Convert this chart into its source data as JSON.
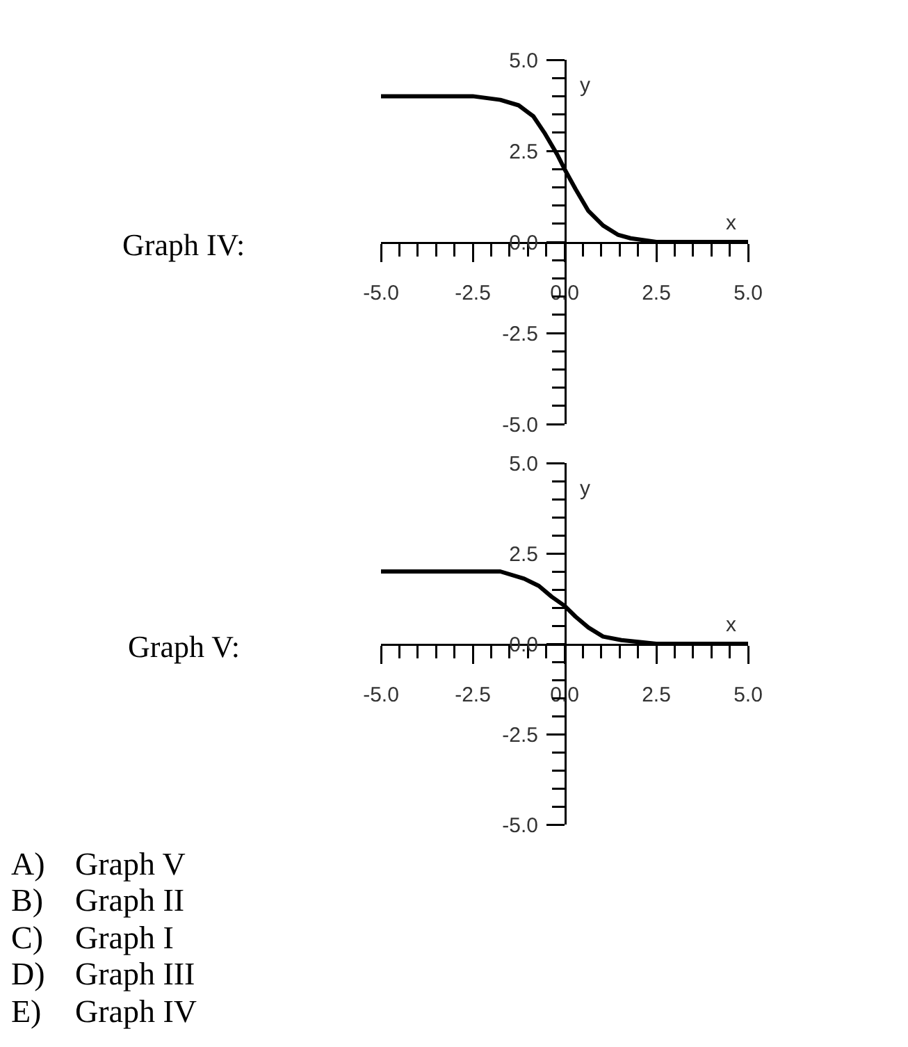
{
  "chart_data": [
    {
      "type": "line",
      "title": "Graph IV:",
      "xlabel": "x",
      "ylabel": "y",
      "color": "#000000",
      "marker": "none",
      "line_style": "solid",
      "x": [
        -5,
        -4,
        -3,
        -2.5,
        -1.75,
        -1.25,
        -0.85,
        -0.55,
        -0.2,
        0,
        0.3,
        0.65,
        1.05,
        1.45,
        1.8,
        2.5,
        3,
        4,
        5
      ],
      "values": [
        4,
        4,
        4,
        4,
        3.9,
        3.75,
        3.45,
        3,
        2.4,
        2,
        1.45,
        0.85,
        0.45,
        0.2,
        0.1,
        0,
        0,
        0,
        0
      ],
      "xlim": [
        -5,
        5
      ],
      "ylim": [
        -5,
        5
      ],
      "xticks": [
        {
          "value": -5,
          "label": "-5.0"
        },
        {
          "value": -4.5,
          "label": null
        },
        {
          "value": -4,
          "label": null
        },
        {
          "value": -3.5,
          "label": null
        },
        {
          "value": -3,
          "label": null
        },
        {
          "value": -2.5,
          "label": "-2.5"
        },
        {
          "value": -2,
          "label": null
        },
        {
          "value": -1.5,
          "label": null
        },
        {
          "value": -1,
          "label": null
        },
        {
          "value": -0.5,
          "label": null
        },
        {
          "value": 0,
          "label": "0.0"
        },
        {
          "value": 0.5,
          "label": null
        },
        {
          "value": 1,
          "label": null
        },
        {
          "value": 1.5,
          "label": null
        },
        {
          "value": 2,
          "label": null
        },
        {
          "value": 2.5,
          "label": "2.5"
        },
        {
          "value": 3,
          "label": null
        },
        {
          "value": 3.5,
          "label": null
        },
        {
          "value": 4,
          "label": null
        },
        {
          "value": 4.5,
          "label": null
        },
        {
          "value": 5,
          "label": "5.0"
        }
      ],
      "yticks": [
        {
          "value": -5,
          "label": "-5.0"
        },
        {
          "value": -4.5,
          "label": null
        },
        {
          "value": -4,
          "label": null
        },
        {
          "value": -3.5,
          "label": null
        },
        {
          "value": -3,
          "label": null
        },
        {
          "value": -2.5,
          "label": "-2.5"
        },
        {
          "value": -2,
          "label": null
        },
        {
          "value": -1.5,
          "label": null
        },
        {
          "value": -1,
          "label": null
        },
        {
          "value": -0.5,
          "label": null
        },
        {
          "value": 0,
          "label": "0.0"
        },
        {
          "value": 0.5,
          "label": null
        },
        {
          "value": 1,
          "label": null
        },
        {
          "value": 1.5,
          "label": null
        },
        {
          "value": 2,
          "label": null
        },
        {
          "value": 2.5,
          "label": "2.5"
        },
        {
          "value": 3,
          "label": null
        },
        {
          "value": 3.5,
          "label": null
        },
        {
          "value": 4,
          "label": null
        },
        {
          "value": 4.5,
          "label": null
        },
        {
          "value": 5,
          "label": "5.0"
        }
      ]
    },
    {
      "type": "line",
      "title": "Graph V:",
      "xlabel": "x",
      "ylabel": "y",
      "color": "#000000",
      "marker": "none",
      "line_style": "solid",
      "x": [
        -5,
        -4,
        -3,
        -2.3,
        -1.75,
        -1.1,
        -0.7,
        -0.35,
        0,
        0.3,
        0.65,
        1.05,
        1.55,
        2.05,
        2.5,
        3,
        4,
        5
      ],
      "values": [
        2,
        2,
        2,
        2,
        2,
        1.8,
        1.6,
        1.3,
        1.05,
        0.75,
        0.45,
        0.2,
        0.1,
        0.05,
        0,
        0,
        0,
        0
      ],
      "xlim": [
        -5,
        5
      ],
      "ylim": [
        -5,
        5
      ],
      "xticks": [
        {
          "value": -5,
          "label": "-5.0"
        },
        {
          "value": -4.5,
          "label": null
        },
        {
          "value": -4,
          "label": null
        },
        {
          "value": -3.5,
          "label": null
        },
        {
          "value": -3,
          "label": null
        },
        {
          "value": -2.5,
          "label": "-2.5"
        },
        {
          "value": -2,
          "label": null
        },
        {
          "value": -1.5,
          "label": null
        },
        {
          "value": -1,
          "label": null
        },
        {
          "value": -0.5,
          "label": null
        },
        {
          "value": 0,
          "label": "0.0"
        },
        {
          "value": 0.5,
          "label": null
        },
        {
          "value": 1,
          "label": null
        },
        {
          "value": 1.5,
          "label": null
        },
        {
          "value": 2,
          "label": null
        },
        {
          "value": 2.5,
          "label": "2.5"
        },
        {
          "value": 3,
          "label": null
        },
        {
          "value": 3.5,
          "label": null
        },
        {
          "value": 4,
          "label": null
        },
        {
          "value": 4.5,
          "label": null
        },
        {
          "value": 5,
          "label": "5.0"
        }
      ],
      "yticks": [
        {
          "value": -5,
          "label": "-5.0"
        },
        {
          "value": -4.5,
          "label": null
        },
        {
          "value": -4,
          "label": null
        },
        {
          "value": -3.5,
          "label": null
        },
        {
          "value": -3,
          "label": null
        },
        {
          "value": -2.5,
          "label": "-2.5"
        },
        {
          "value": -2,
          "label": null
        },
        {
          "value": -1.5,
          "label": null
        },
        {
          "value": -1,
          "label": null
        },
        {
          "value": -0.5,
          "label": null
        },
        {
          "value": 0,
          "label": "0.0"
        },
        {
          "value": 0.5,
          "label": null
        },
        {
          "value": 1,
          "label": null
        },
        {
          "value": 1.5,
          "label": null
        },
        {
          "value": 2,
          "label": null
        },
        {
          "value": 2.5,
          "label": "2.5"
        },
        {
          "value": 3,
          "label": null
        },
        {
          "value": 3.5,
          "label": null
        },
        {
          "value": 4,
          "label": null
        },
        {
          "value": 4.5,
          "label": null
        },
        {
          "value": 5,
          "label": "5.0"
        }
      ],
      "annotations": [
        "A)",
        "Graph V",
        "B)",
        "Graph II",
        "C)",
        "Graph I",
        "D)",
        "Graph III",
        "E)",
        "Graph IV"
      ]
    }
  ]
}
